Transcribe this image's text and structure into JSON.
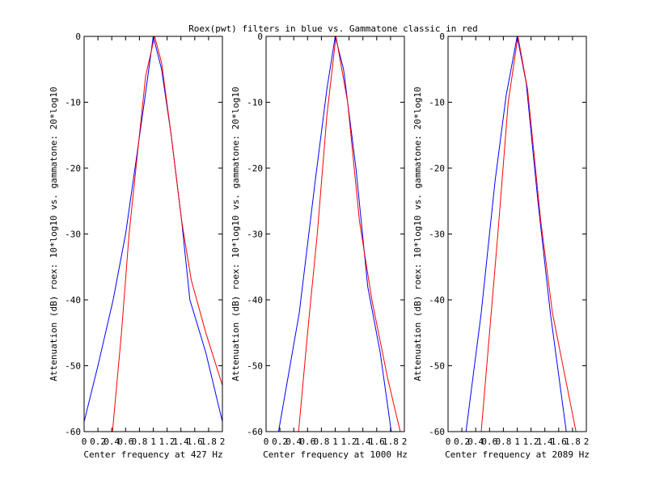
{
  "title": "Roex(pwt) filters in blue vs. Gammatone classic in red",
  "colors": {
    "roex": "#0000ff",
    "gammatone": "#ff0000",
    "axes": "#000000",
    "background": "#ffffff"
  },
  "chart_data": [
    {
      "type": "line",
      "xlabel": "Center frequency at 427 Hz",
      "ylabel": "Attenuation (dB) roex: 10*log10 vs. gammatone: 20*log10",
      "xlim": [
        0,
        2
      ],
      "ylim": [
        -60,
        0
      ],
      "xticks": [
        "0",
        "0.2",
        "0.4",
        "0.6",
        "0.8",
        "1",
        "1.2",
        "1.4",
        "1.6",
        "1.8",
        "2"
      ],
      "yticks": [
        "-60",
        "-50",
        "-40",
        "-30",
        "-20",
        "-10",
        "0"
      ],
      "grid": false,
      "series": [
        {
          "color": "#0000ff",
          "x": [
            0,
            0.2,
            0.42,
            0.6,
            0.75,
            0.87,
            1.0,
            1.12,
            1.26,
            1.41,
            1.53,
            1.76,
            2.0
          ],
          "y": [
            -58.5,
            -50,
            -40,
            -30,
            -19,
            -10,
            0,
            -5,
            -15,
            -28,
            -40,
            -48,
            -58.5
          ]
        },
        {
          "color": "#ff0000",
          "x": [
            0.41,
            0.54,
            0.65,
            0.77,
            0.89,
            1.02,
            1.12,
            1.26,
            1.41,
            1.55,
            1.76,
            2.0
          ],
          "y": [
            -60,
            -45,
            -30,
            -18,
            -6,
            0,
            -4,
            -15,
            -28,
            -37,
            -45,
            -53
          ]
        }
      ]
    },
    {
      "type": "line",
      "xlabel": "Center frequency at 1000 Hz",
      "ylabel": "Attenuation (dB) roex: 10*log10 vs. gammatone: 20*log10",
      "xlim": [
        0,
        2
      ],
      "ylim": [
        -60,
        0
      ],
      "xticks": [
        "0",
        "0.2",
        "0.4",
        "0.6",
        "0.8",
        "1",
        "1.2",
        "1.4",
        "1.6",
        "1.8",
        "2"
      ],
      "yticks": [
        "-60",
        "-50",
        "-40",
        "-30",
        "-20",
        "-10",
        "0"
      ],
      "grid": false,
      "series": [
        {
          "color": "#0000ff",
          "x": [
            0.18,
            0.48,
            0.71,
            0.88,
            1.0,
            1.12,
            1.3,
            1.47,
            1.65,
            1.81
          ],
          "y": [
            -60,
            -42,
            -22,
            -8,
            0,
            -5,
            -20,
            -38,
            -48,
            -60
          ]
        },
        {
          "color": "#ff0000",
          "x": [
            0.47,
            0.6,
            0.74,
            0.88,
            1.01,
            1.18,
            1.35,
            1.53,
            1.76,
            1.94
          ],
          "y": [
            -60,
            -45,
            -30,
            -12,
            0,
            -10,
            -28,
            -40,
            -52,
            -60
          ]
        }
      ]
    },
    {
      "type": "line",
      "xlabel": "Center frequency at 2089 Hz",
      "ylabel": "Attenuation (dB) roex: 10*log10 vs. gammatone: 20*log10",
      "xlim": [
        0,
        2
      ],
      "ylim": [
        -60,
        0
      ],
      "xticks": [
        "0",
        "0.2",
        "0.4",
        "0.6",
        "0.8",
        "1",
        "1.2",
        "1.4",
        "1.6",
        "1.8",
        "2"
      ],
      "yticks": [
        "-60",
        "-50",
        "-40",
        "-30",
        "-20",
        "-10",
        "0"
      ],
      "grid": false,
      "series": [
        {
          "color": "#0000ff",
          "x": [
            0.26,
            0.48,
            0.68,
            0.84,
            1.0,
            1.13,
            1.3,
            1.48,
            1.71
          ],
          "y": [
            -60,
            -42,
            -22,
            -9,
            0,
            -7,
            -25,
            -42,
            -60
          ]
        },
        {
          "color": "#ff0000",
          "x": [
            0.48,
            0.6,
            0.72,
            0.87,
            1.01,
            1.15,
            1.34,
            1.51,
            1.85
          ],
          "y": [
            -60,
            -45,
            -30,
            -10,
            0,
            -8,
            -28,
            -42,
            -60
          ]
        }
      ]
    }
  ]
}
